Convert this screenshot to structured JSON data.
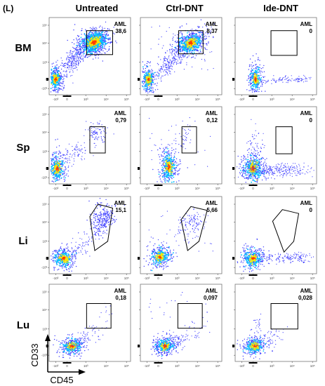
{
  "panel_label": "(L)",
  "columns": [
    "Untreated",
    "Ctrl-DNT",
    "Ide-DNT"
  ],
  "rows": [
    "BM",
    "Sp",
    "Li",
    "Lu"
  ],
  "gate_name": "AML",
  "values": [
    [
      "38,6",
      "8,37",
      "0"
    ],
    [
      "0,79",
      "0,12",
      "0"
    ],
    [
      "15,1",
      "5,66",
      "0"
    ],
    [
      "0,18",
      "0,097",
      "0,028"
    ]
  ],
  "axes": {
    "y": "CD33",
    "x": "CD45"
  },
  "tick_labels": {
    "y": [
      "10⁵",
      "10⁴",
      "10³",
      "0",
      "-10³"
    ],
    "x": [
      "-10³",
      "0",
      "10³",
      "10⁴",
      "10⁵"
    ]
  },
  "colors": {
    "dots": "#3a3aff",
    "density_mid": "#00c8ff",
    "density_high": "#ffe600",
    "gate": "#000000"
  }
}
